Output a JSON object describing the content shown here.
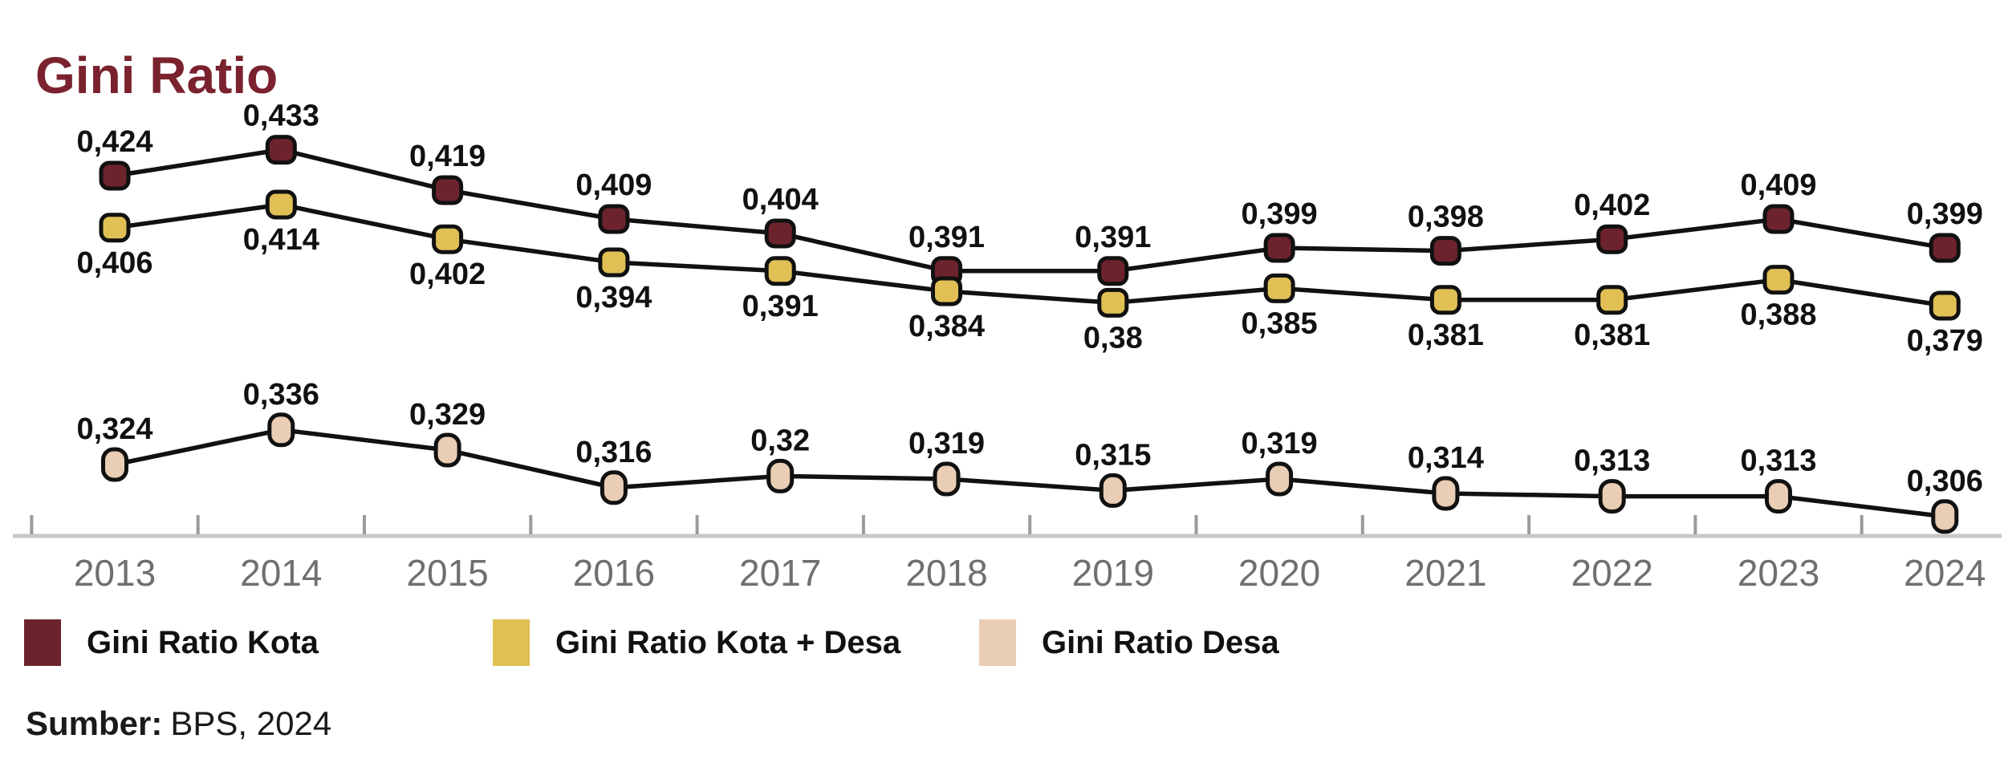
{
  "title": "Gini Ratio",
  "title_color": "#7a222e",
  "source": {
    "label": "Sumber:",
    "value": "BPS, 2024"
  },
  "legend": [
    {
      "label": "Gini Ratio Kota",
      "color": "#6d232c"
    },
    {
      "label": "Gini Ratio Kota + Desa",
      "color": "#e0bf55"
    },
    {
      "label": "Gini Ratio Desa",
      "color": "#e9cdb4"
    }
  ],
  "axis": {
    "line_color": "#c7c7c7",
    "tick_color": "#9b9b9b",
    "year_label_color": "#6f6f6f"
  },
  "chart_data": {
    "type": "line",
    "title": "Gini Ratio",
    "xlabel": "",
    "ylabel": "",
    "categories": [
      "2013",
      "2014",
      "2015",
      "2016",
      "2017",
      "2018",
      "2019",
      "2020",
      "2021",
      "2022",
      "2023",
      "2024"
    ],
    "ylim": [
      0.3,
      0.44
    ],
    "grid": false,
    "legend_position": "bottom",
    "decimal_separator": ",",
    "series": [
      {
        "name": "Gini Ratio Kota",
        "color": "#6d232c",
        "label_position": "above",
        "values": [
          0.424,
          0.433,
          0.419,
          0.409,
          0.404,
          0.391,
          0.391,
          0.399,
          0.398,
          0.402,
          0.409,
          0.399
        ],
        "labels": [
          "0,424",
          "0,433",
          "0,419",
          "0,409",
          "0,404",
          "0,391",
          "0,391",
          "0,399",
          "0,398",
          "0,402",
          "0,409",
          "0,399"
        ]
      },
      {
        "name": "Gini Ratio Kota + Desa",
        "color": "#e0bf55",
        "label_position": "below",
        "values": [
          0.406,
          0.414,
          0.402,
          0.394,
          0.391,
          0.384,
          0.38,
          0.385,
          0.381,
          0.381,
          0.388,
          0.379
        ],
        "labels": [
          "0,406",
          "0,414",
          "0,402",
          "0,394",
          "0,391",
          "0,384",
          "0,38",
          "0,385",
          "0,381",
          "0,381",
          "0,388",
          "0,379"
        ]
      },
      {
        "name": "Gini Ratio Desa",
        "color": "#e9cdb4",
        "label_position": "above",
        "values": [
          0.324,
          0.336,
          0.329,
          0.316,
          0.32,
          0.319,
          0.315,
          0.319,
          0.314,
          0.313,
          0.313,
          0.306
        ],
        "labels": [
          "0,324",
          "0,336",
          "0,329",
          "0,316",
          "0,32",
          "0,319",
          "0,315",
          "0,319",
          "0,314",
          "0,313",
          "0,313",
          "0,306"
        ]
      }
    ]
  }
}
